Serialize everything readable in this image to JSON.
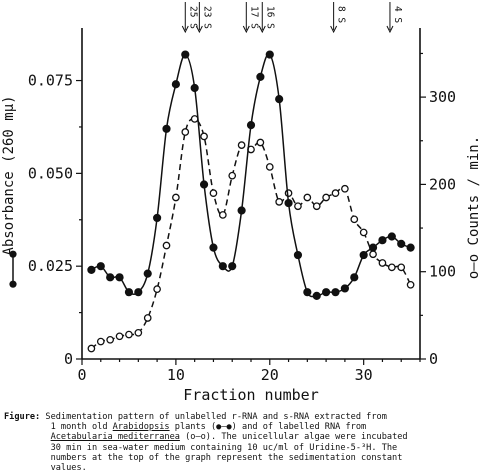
{
  "chart_data": {
    "type": "line",
    "xlabel": "Fraction number",
    "ylabel_left": "Absorbance (260 mμ)",
    "ylabel_right": "o—o Counts / min.",
    "x_ticks": [
      "0",
      "10",
      "20",
      "30"
    ],
    "x_range": [
      0,
      36
    ],
    "left_ticks": [
      "0",
      "0.025",
      "0.050",
      "0.075"
    ],
    "left_range": [
      0,
      0.087
    ],
    "right_ticks": [
      "0",
      "100",
      "200",
      "300"
    ],
    "right_range": [
      0,
      370
    ],
    "left_axis_legend": "●—●",
    "sedimentation_markers": [
      {
        "label": "25 S",
        "x": 11.0
      },
      {
        "label": "23 S",
        "x": 12.5
      },
      {
        "label": "17 S",
        "x": 17.5
      },
      {
        "label": "16 S",
        "x": 19.2
      },
      {
        "label": "8 S",
        "x": 26.8
      },
      {
        "label": "4 S",
        "x": 32.8
      }
    ],
    "series": [
      {
        "axis": "left",
        "marker": "filled",
        "line": "solid",
        "x": [
          1,
          2,
          3,
          4,
          5,
          6,
          7,
          8,
          9,
          10,
          11,
          12,
          13,
          14,
          15,
          16,
          17,
          18,
          19,
          20,
          21,
          22,
          23,
          24,
          25,
          26,
          27,
          28,
          29,
          30,
          31,
          32,
          33,
          34,
          35
        ],
        "values": [
          0.024,
          0.025,
          0.022,
          0.022,
          0.018,
          0.018,
          0.023,
          0.038,
          0.062,
          0.074,
          0.082,
          0.073,
          0.047,
          0.03,
          0.025,
          0.025,
          0.04,
          0.063,
          0.076,
          0.082,
          0.07,
          0.042,
          0.028,
          0.018,
          0.017,
          0.018,
          0.018,
          0.019,
          0.022,
          0.028,
          0.03,
          0.032,
          0.033,
          0.031,
          0.03
        ]
      },
      {
        "axis": "right",
        "marker": "open",
        "line": "dashed",
        "x": [
          1,
          2,
          3,
          4,
          5,
          6,
          7,
          8,
          9,
          10,
          11,
          12,
          13,
          14,
          15,
          16,
          17,
          18,
          19,
          20,
          21,
          22,
          23,
          24,
          25,
          26,
          27,
          28,
          29,
          30,
          31,
          32,
          33,
          34,
          35
        ],
        "values": [
          12,
          20,
          22,
          26,
          28,
          30,
          47,
          80,
          130,
          185,
          260,
          275,
          255,
          190,
          165,
          210,
          245,
          240,
          248,
          220,
          180,
          190,
          175,
          185,
          175,
          185,
          190,
          195,
          160,
          145,
          120,
          110,
          105,
          105,
          85
        ]
      }
    ]
  },
  "caption": {
    "lead": "Figure:",
    "line1": " Sedimentation pattern of unlabelled r-RNA and s-RNA extracted from",
    "line2_a": "         1 month old ",
    "line2_u": "Arabidopsis",
    "line2_b": " plants (●—●) and of labelled RNA from",
    "line3_u": "Acetabularia mediterranea",
    "line3_b": " (o—o). The unicellular algae were incubated",
    "line4": "         30 min in sea-water medium containing 10 uc/ml of Uridine-5-³H. The",
    "line5": "         numbers at the top of the graph represent the sedimentation constant",
    "line6": "         values."
  }
}
